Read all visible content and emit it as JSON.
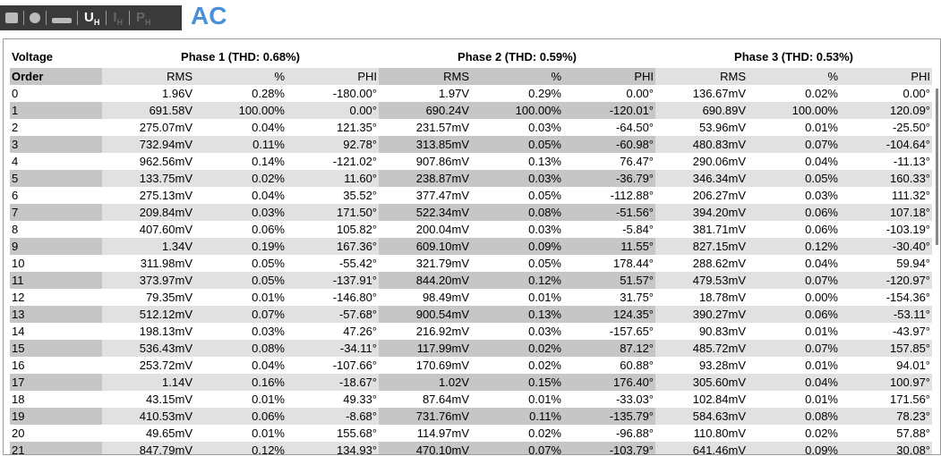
{
  "toolbar": {
    "buttons": [
      {
        "label": "U",
        "sub": "H"
      },
      {
        "label": "I",
        "sub": "H"
      },
      {
        "label": "P",
        "sub": "H"
      }
    ],
    "mode": "AC"
  },
  "table": {
    "title": "Voltage",
    "groups": [
      "Phase 1 (THD: 0.68%)",
      "Phase 2 (THD: 0.59%)",
      "Phase 3 (THD: 0.53%)"
    ],
    "columns": [
      "Order",
      "RMS",
      "%",
      "PHI",
      "RMS",
      "%",
      "PHI",
      "RMS",
      "%",
      "PHI"
    ],
    "rows": [
      [
        "0",
        "1.96V",
        "0.28%",
        "-180.00°",
        "1.97V",
        "0.29%",
        "0.00°",
        "136.67mV",
        "0.02%",
        "0.00°"
      ],
      [
        "1",
        "691.58V",
        "100.00%",
        "0.00°",
        "690.24V",
        "100.00%",
        "-120.01°",
        "690.89V",
        "100.00%",
        "120.09°"
      ],
      [
        "2",
        "275.07mV",
        "0.04%",
        "121.35°",
        "231.57mV",
        "0.03%",
        "-64.50°",
        "53.96mV",
        "0.01%",
        "-25.50°"
      ],
      [
        "3",
        "732.94mV",
        "0.11%",
        "92.78°",
        "313.85mV",
        "0.05%",
        "-60.98°",
        "480.83mV",
        "0.07%",
        "-104.64°"
      ],
      [
        "4",
        "962.56mV",
        "0.14%",
        "-121.02°",
        "907.86mV",
        "0.13%",
        "76.47°",
        "290.06mV",
        "0.04%",
        "-11.13°"
      ],
      [
        "5",
        "133.75mV",
        "0.02%",
        "11.60°",
        "238.87mV",
        "0.03%",
        "-36.79°",
        "346.34mV",
        "0.05%",
        "160.33°"
      ],
      [
        "6",
        "275.13mV",
        "0.04%",
        "35.52°",
        "377.47mV",
        "0.05%",
        "-112.88°",
        "206.27mV",
        "0.03%",
        "111.32°"
      ],
      [
        "7",
        "209.84mV",
        "0.03%",
        "171.50°",
        "522.34mV",
        "0.08%",
        "-51.56°",
        "394.20mV",
        "0.06%",
        "107.18°"
      ],
      [
        "8",
        "407.60mV",
        "0.06%",
        "105.82°",
        "200.04mV",
        "0.03%",
        "-5.84°",
        "381.71mV",
        "0.06%",
        "-103.19°"
      ],
      [
        "9",
        "1.34V",
        "0.19%",
        "167.36°",
        "609.10mV",
        "0.09%",
        "11.55°",
        "827.15mV",
        "0.12%",
        "-30.40°"
      ],
      [
        "10",
        "311.98mV",
        "0.05%",
        "-55.42°",
        "321.79mV",
        "0.05%",
        "178.44°",
        "288.62mV",
        "0.04%",
        "59.94°"
      ],
      [
        "11",
        "373.97mV",
        "0.05%",
        "-137.91°",
        "844.20mV",
        "0.12%",
        "51.57°",
        "479.53mV",
        "0.07%",
        "-120.97°"
      ],
      [
        "12",
        "79.35mV",
        "0.01%",
        "-146.80°",
        "98.49mV",
        "0.01%",
        "31.75°",
        "18.78mV",
        "0.00%",
        "-154.36°"
      ],
      [
        "13",
        "512.12mV",
        "0.07%",
        "-57.68°",
        "900.54mV",
        "0.13%",
        "124.35°",
        "390.27mV",
        "0.06%",
        "-53.11°"
      ],
      [
        "14",
        "198.13mV",
        "0.03%",
        "47.26°",
        "216.92mV",
        "0.03%",
        "-157.65°",
        "90.83mV",
        "0.01%",
        "-43.97°"
      ],
      [
        "15",
        "536.43mV",
        "0.08%",
        "-34.11°",
        "117.99mV",
        "0.02%",
        "87.12°",
        "485.72mV",
        "0.07%",
        "157.85°"
      ],
      [
        "16",
        "253.72mV",
        "0.04%",
        "-107.66°",
        "170.69mV",
        "0.02%",
        "60.88°",
        "93.28mV",
        "0.01%",
        "94.01°"
      ],
      [
        "17",
        "1.14V",
        "0.16%",
        "-18.67°",
        "1.02V",
        "0.15%",
        "176.40°",
        "305.60mV",
        "0.04%",
        "100.97°"
      ],
      [
        "18",
        "43.15mV",
        "0.01%",
        "49.33°",
        "87.64mV",
        "0.01%",
        "-33.03°",
        "102.84mV",
        "0.01%",
        "171.56°"
      ],
      [
        "19",
        "410.53mV",
        "0.06%",
        "-8.68°",
        "731.76mV",
        "0.11%",
        "-135.79°",
        "584.63mV",
        "0.08%",
        "78.23°"
      ],
      [
        "20",
        "49.65mV",
        "0.01%",
        "155.68°",
        "114.97mV",
        "0.02%",
        "-96.88°",
        "110.80mV",
        "0.02%",
        "57.88°"
      ],
      [
        "21",
        "847.79mV",
        "0.12%",
        "134.93°",
        "470.10mV",
        "0.07%",
        "-103.79°",
        "641.46mV",
        "0.09%",
        "30.08°"
      ]
    ]
  }
}
